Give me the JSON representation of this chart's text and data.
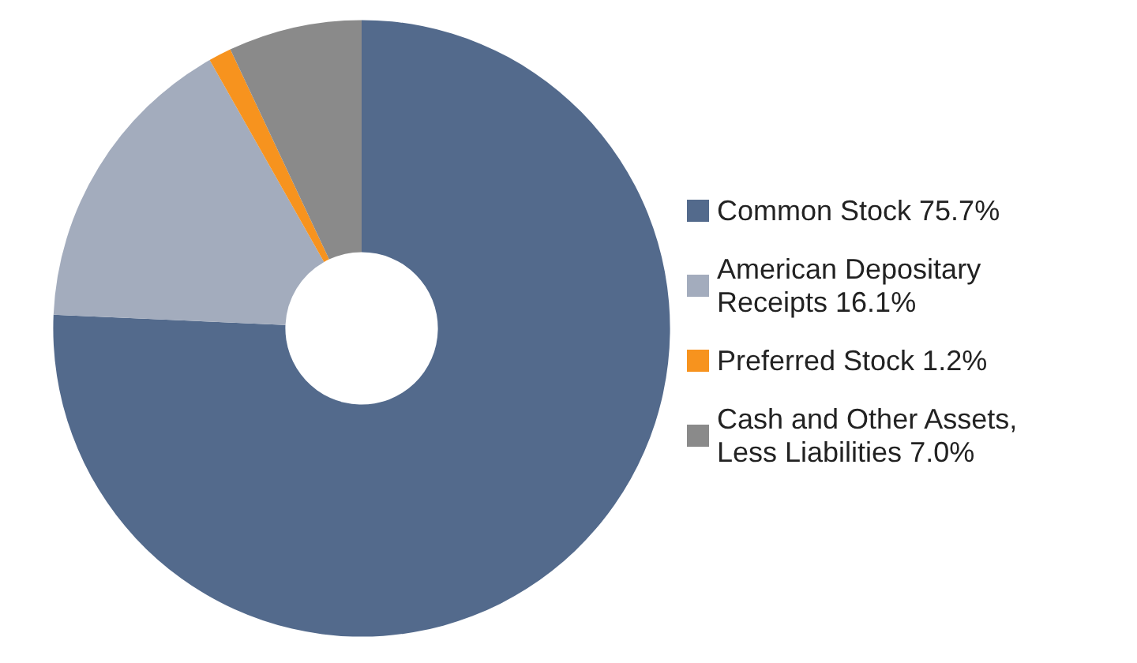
{
  "chart_data": {
    "type": "donut",
    "categories": [
      "Common Stock",
      "American Depositary Receipts",
      "Preferred Stock",
      "Cash and Other Assets, Less Liabilities"
    ],
    "values": [
      75.7,
      16.1,
      1.2,
      7.0
    ],
    "value_labels": [
      "75.7%",
      "16.1%",
      "1.2%",
      "7.0%"
    ],
    "colors": [
      "#536a8c",
      "#a3acbd",
      "#f7931e",
      "#8a8a8a"
    ],
    "legend": "right"
  }
}
